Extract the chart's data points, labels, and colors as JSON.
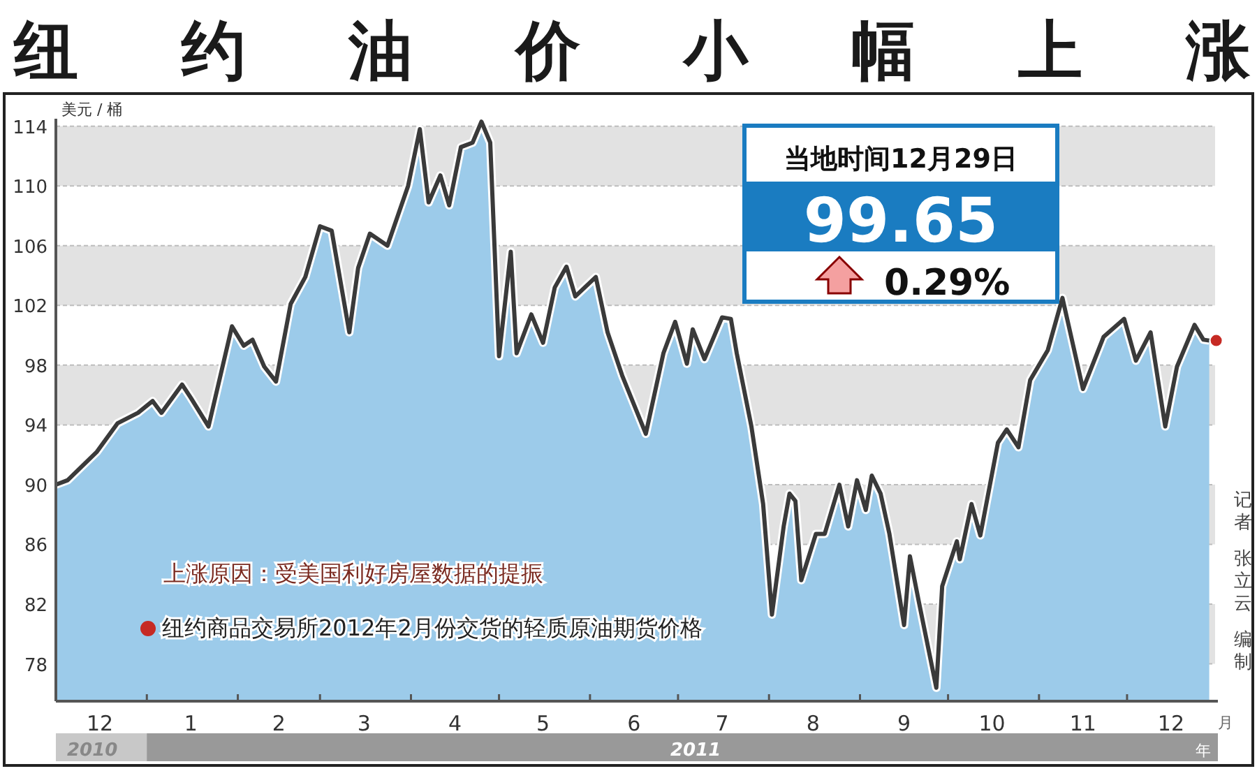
{
  "chart_data": {
    "type": "area",
    "title": "纽约油价小幅上涨",
    "ylabel": "美元 / 桶",
    "xlabel": "月",
    "xlim": [
      "2010-12-01",
      "2011-12-31"
    ],
    "ylim": [
      75.5,
      114.5
    ],
    "yticks": [
      78,
      82,
      86,
      90,
      94,
      98,
      102,
      106,
      110,
      114
    ],
    "xticks": [
      {
        "value": "2010-12-16",
        "label": "12"
      },
      {
        "value": "2011-01-01",
        "label": null
      },
      {
        "value": "2011-01-16",
        "label": "1"
      },
      {
        "value": "2011-02-01",
        "label": null
      },
      {
        "value": "2011-02-15",
        "label": "2"
      },
      {
        "value": "2011-03-01",
        "label": null
      },
      {
        "value": "2011-03-16",
        "label": "3"
      },
      {
        "value": "2011-04-01",
        "label": null
      },
      {
        "value": "2011-04-16",
        "label": "4"
      },
      {
        "value": "2011-05-01",
        "label": null
      },
      {
        "value": "2011-05-16",
        "label": "5"
      },
      {
        "value": "2011-06-01",
        "label": null
      },
      {
        "value": "2011-06-16",
        "label": "6"
      },
      {
        "value": "2011-07-01",
        "label": null
      },
      {
        "value": "2011-07-16",
        "label": "7"
      },
      {
        "value": "2011-08-01",
        "label": null
      },
      {
        "value": "2011-08-16",
        "label": "8"
      },
      {
        "value": "2011-09-01",
        "label": null
      },
      {
        "value": "2011-09-16",
        "label": "9"
      },
      {
        "value": "2011-10-01",
        "label": null
      },
      {
        "value": "2011-10-16",
        "label": "10"
      },
      {
        "value": "2011-11-01",
        "label": null
      },
      {
        "value": "2011-11-16",
        "label": "11"
      },
      {
        "value": "2011-12-01",
        "label": null
      },
      {
        "value": "2011-12-16",
        "label": "12"
      }
    ],
    "grid": "y",
    "legend": "bottom left",
    "annotations": [
      "上涨原因：受美国利好房屋数据的提振",
      "当地时间12月29日",
      "99.65",
      "0.29%",
      "2010",
      "2011",
      "年",
      "记者",
      "张立云",
      "编制"
    ],
    "series": [
      {
        "name": "纽约商品交易所2012年2月份交货的轻质原油期货价格",
        "color": "#3a3a3a",
        "x": [
          "2010-12-01",
          "2010-12-05",
          "2010-12-15",
          "2010-12-22",
          "2010-12-29",
          "2011-01-03",
          "2011-01-06",
          "2011-01-13",
          "2011-01-16",
          "2011-01-22",
          "2011-01-30",
          "2011-02-03",
          "2011-02-06",
          "2011-02-10",
          "2011-02-14",
          "2011-02-19",
          "2011-02-24",
          "2011-03-01",
          "2011-03-05",
          "2011-03-11",
          "2011-03-14",
          "2011-03-18",
          "2011-03-24",
          "2011-03-31",
          "2011-04-04",
          "2011-04-07",
          "2011-04-11",
          "2011-04-14",
          "2011-04-18",
          "2011-04-22",
          "2011-04-25",
          "2011-04-28",
          "2011-05-01",
          "2011-05-05",
          "2011-05-07",
          "2011-05-12",
          "2011-05-16",
          "2011-05-20",
          "2011-05-24",
          "2011-05-27",
          "2011-06-03",
          "2011-06-07",
          "2011-06-12",
          "2011-06-20",
          "2011-06-26",
          "2011-06-30",
          "2011-07-04",
          "2011-07-06",
          "2011-07-10",
          "2011-07-16",
          "2011-07-19",
          "2011-07-21",
          "2011-07-26",
          "2011-07-30",
          "2011-08-02",
          "2011-08-06",
          "2011-08-08",
          "2011-08-10",
          "2011-08-12",
          "2011-08-17",
          "2011-08-20",
          "2011-08-25",
          "2011-08-28",
          "2011-08-31",
          "2011-09-03",
          "2011-09-05",
          "2011-09-08",
          "2011-09-11",
          "2011-09-16",
          "2011-09-18",
          "2011-09-21",
          "2011-09-27",
          "2011-09-29",
          "2011-10-04",
          "2011-10-05",
          "2011-10-09",
          "2011-10-12",
          "2011-10-18",
          "2011-10-21",
          "2011-10-25",
          "2011-10-29",
          "2011-11-04",
          "2011-11-09",
          "2011-11-16",
          "2011-11-23",
          "2011-11-30",
          "2011-12-04",
          "2011-12-09",
          "2011-12-14",
          "2011-12-18",
          "2011-12-24",
          "2011-12-27",
          "2011-12-29"
        ],
        "values": [
          90.0,
          90.3,
          92.2,
          94.1,
          94.8,
          95.6,
          94.8,
          96.7,
          95.8,
          93.9,
          100.6,
          99.3,
          99.7,
          97.9,
          96.9,
          102.1,
          103.9,
          107.3,
          107.0,
          100.2,
          104.5,
          106.8,
          106.0,
          110.0,
          113.8,
          108.9,
          110.7,
          108.7,
          112.6,
          112.9,
          114.3,
          112.9,
          98.6,
          105.6,
          98.8,
          101.4,
          99.5,
          103.2,
          104.6,
          102.6,
          103.9,
          100.2,
          97.3,
          93.4,
          98.8,
          100.9,
          98.1,
          100.4,
          98.4,
          101.2,
          101.1,
          98.8,
          93.9,
          88.7,
          81.3,
          87.2,
          89.4,
          88.9,
          83.6,
          86.7,
          86.7,
          90.0,
          87.2,
          90.3,
          88.3,
          90.6,
          89.4,
          86.7,
          80.6,
          85.2,
          82.2,
          76.4,
          83.2,
          86.2,
          85.0,
          88.7,
          86.6,
          92.8,
          93.7,
          92.5,
          97.0,
          99.0,
          102.5,
          96.4,
          99.9,
          101.1,
          98.3,
          100.2,
          93.9,
          97.9,
          100.7,
          99.7,
          99.65
        ]
      }
    ]
  }
}
